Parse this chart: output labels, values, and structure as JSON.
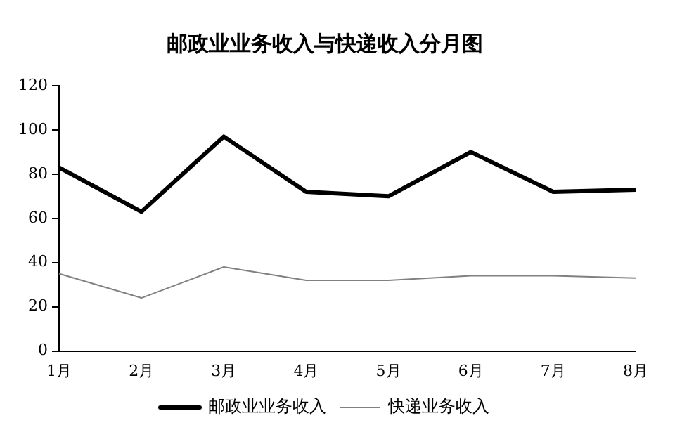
{
  "chart_data": {
    "type": "line",
    "title": "邮政业业务收入与快递收入分月图",
    "categories": [
      "1月",
      "2月",
      "3月",
      "4月",
      "5月",
      "6月",
      "7月",
      "8月"
    ],
    "series": [
      {
        "name": "邮政业业务收入",
        "color": "#000000",
        "values": [
          83,
          63,
          97,
          72,
          70,
          90,
          72,
          73
        ]
      },
      {
        "name": "快递业务收入",
        "color": "#808080",
        "values": [
          35,
          24,
          38,
          32,
          32,
          34,
          34,
          33
        ]
      }
    ],
    "ylim": [
      0,
      120
    ],
    "yticks": [
      0,
      20,
      40,
      60,
      80,
      100,
      120
    ],
    "grid": false,
    "legend": "bottom",
    "marker": "none",
    "line_style": "solid"
  }
}
